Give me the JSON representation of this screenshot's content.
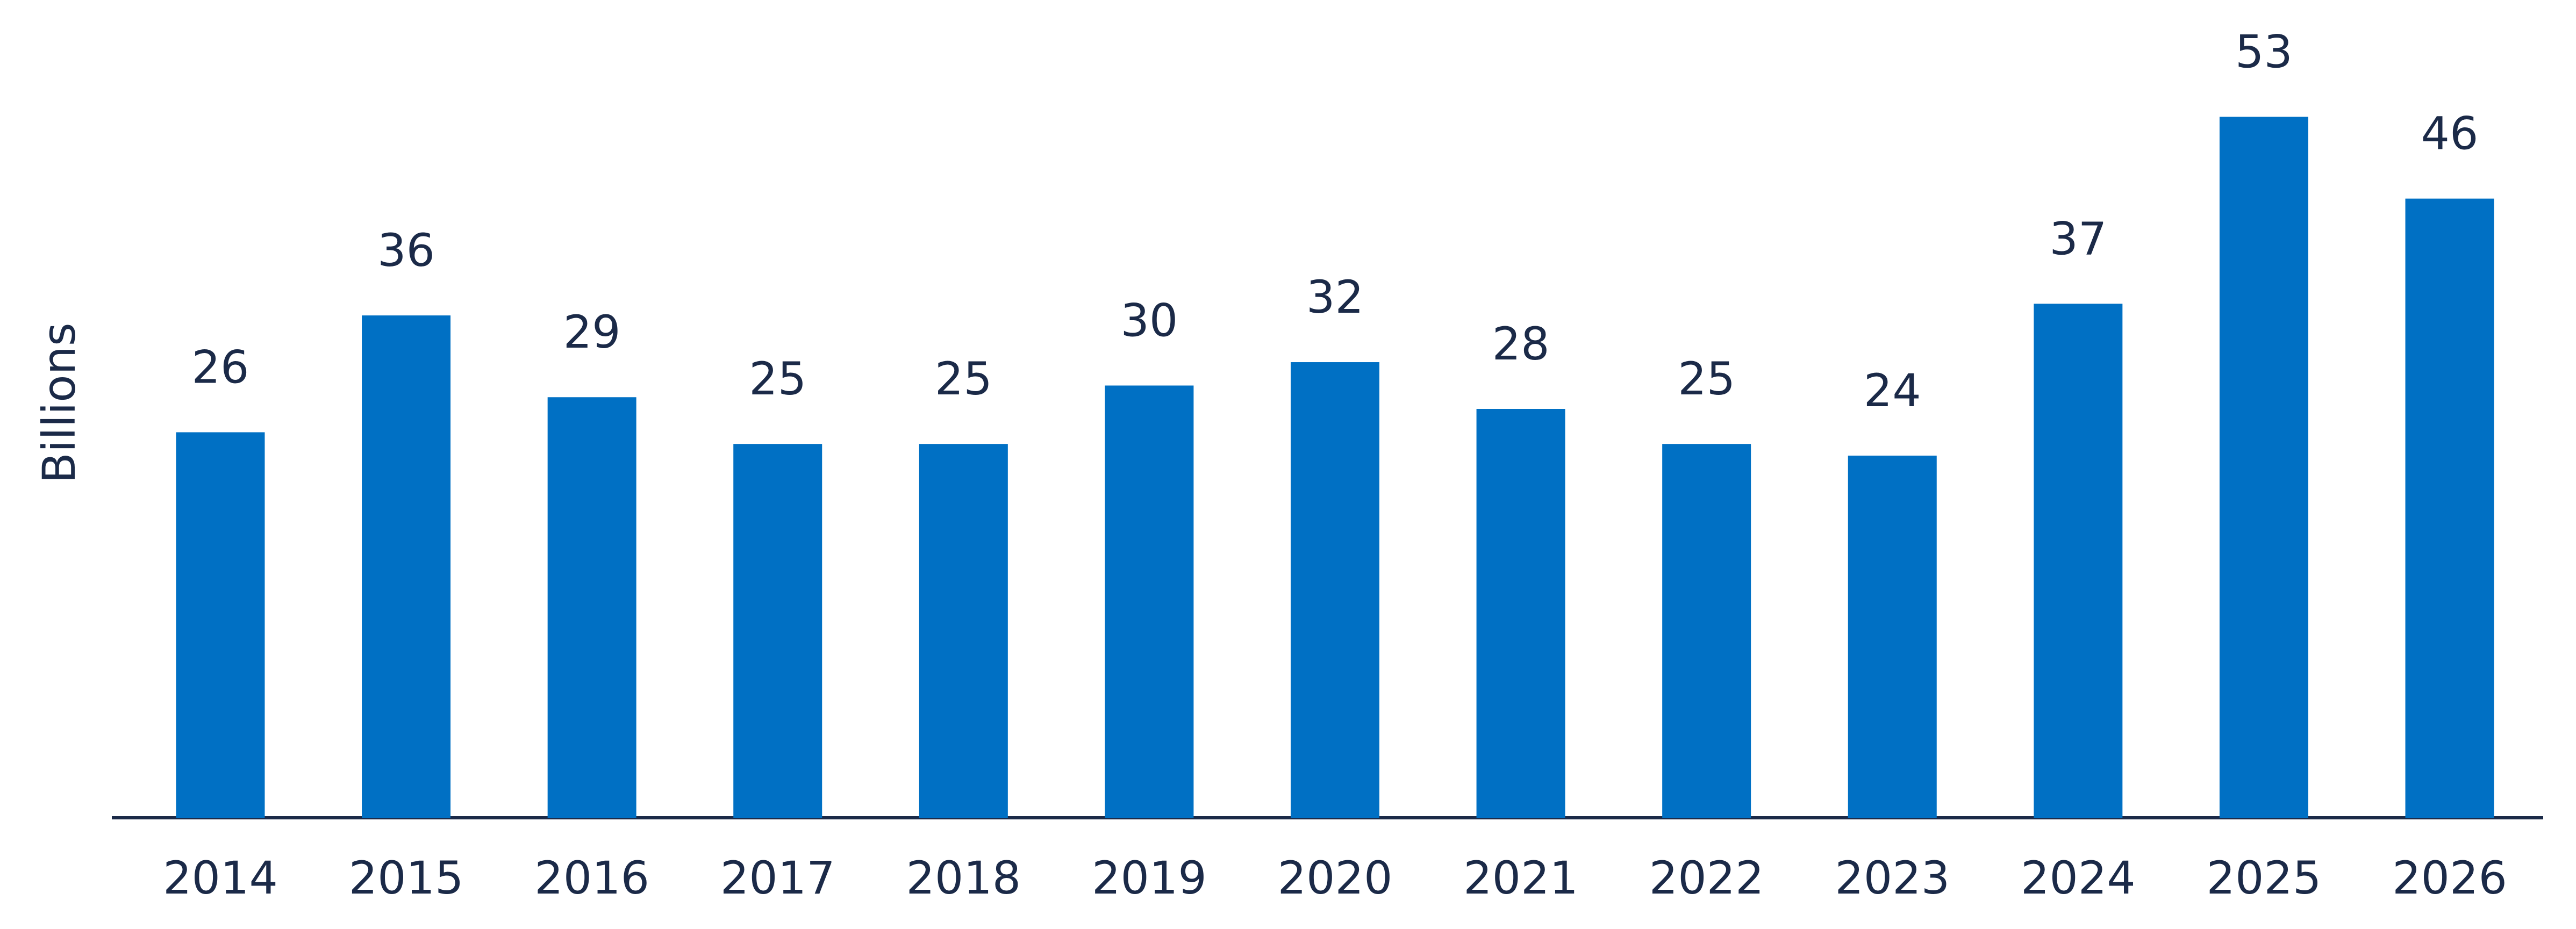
{
  "chart_data": {
    "type": "bar",
    "y_label": "Billions",
    "categories": [
      "2014",
      "2015",
      "2016",
      "2017",
      "2018",
      "2019",
      "2020",
      "2021",
      "2022",
      "2023",
      "2024",
      "2025",
      "2026"
    ],
    "values": [
      26,
      36,
      29,
      25,
      25,
      30,
      32,
      28,
      25,
      24,
      37,
      53,
      46
    ],
    "color": "#0070c4",
    "ylim": [
      -7,
      63
    ]
  }
}
